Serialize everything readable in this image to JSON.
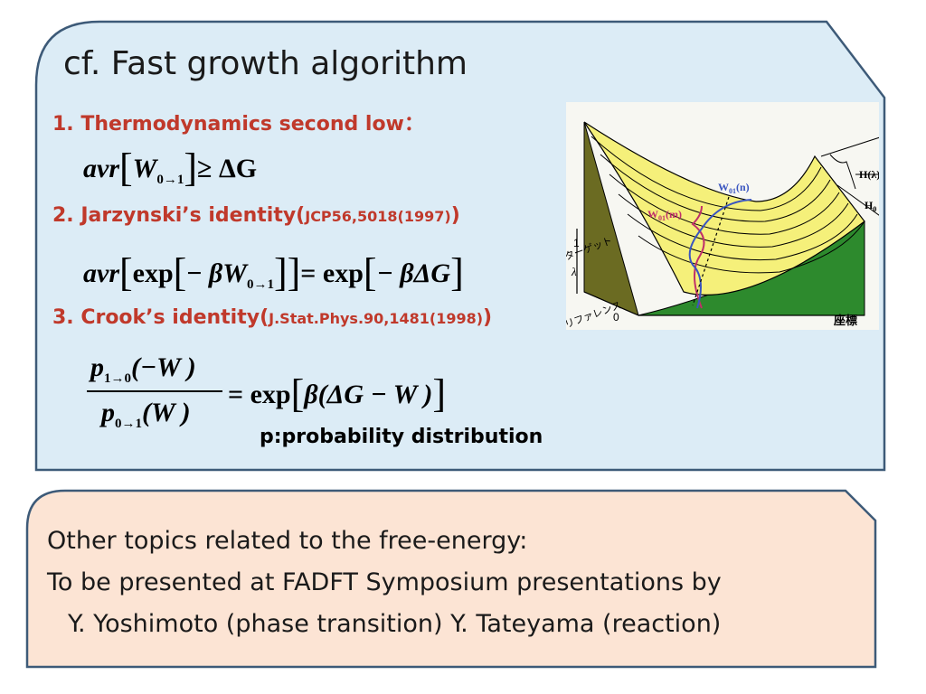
{
  "slide": {
    "title": "cf. Fast growth algorithm",
    "items": [
      {
        "label": "1. Thermodynamics second low：",
        "ref": ""
      },
      {
        "label": "2. Jarzynski’s identity(",
        "ref": "JCP56,5018(1997)",
        "close": ")"
      },
      {
        "label": "3. Crook’s identity(",
        "ref": "J.Stat.Phys.90,1481(1998)",
        "close": ")"
      }
    ],
    "equations": {
      "eq1": {
        "avr": "avr",
        "W": "W",
        "sub": "0→1",
        "rel": "≥ ΔG"
      },
      "eq2": {
        "avr": "avr",
        "exp": "exp",
        "minus": "−",
        "beta": "β",
        "W": "W",
        "sub": "0→1",
        "eq": "= exp",
        "rhs": "− βΔG"
      },
      "eq3": {
        "num": "p",
        "num_sub": "1→0",
        "num_arg": "(−W )",
        "den": "p",
        "den_sub": "0→1",
        "den_arg": "(W )",
        "rhs": "= exp",
        "rhs_arg": "β(ΔG − W )"
      }
    },
    "p_note": "p:probability distribution"
  },
  "figure": {
    "label_H1": "H",
    "label_H1_sub": "1",
    "label_Hl": "H(λ)",
    "label_H0": "H",
    "label_H0_sub": "0",
    "label_W01n": "W",
    "label_W01n_sub": "01",
    "label_W01n_arg": "(n)",
    "label_W01m": "W",
    "label_W01m_sub": "01",
    "label_W01m_arg": "(m)",
    "axis_target": "ターゲット",
    "axis_reference": "リファレンス",
    "axis_lambda": "λ",
    "tick_1": "1",
    "tick_0": "0",
    "axis_coord": "座標",
    "colors": {
      "surface": "#f5f07a",
      "wall_left": "#6b6b22",
      "wall_front": "#2d8a2d",
      "curve_red": "#c0306a",
      "curve_blue": "#3a55c0"
    }
  },
  "bottom_box": {
    "line1": "Other topics related to the free-energy:",
    "line2": "To be presented at FADFT Symposium presentations by",
    "line3": "Y. Yoshimoto  (phase transition)  Y. Tateyama (reaction)"
  },
  "colors": {
    "top_box": "#dcecf6",
    "bottom_box": "#fce4d4",
    "border": "#3d5a78",
    "accent_red": "#c0392b"
  }
}
